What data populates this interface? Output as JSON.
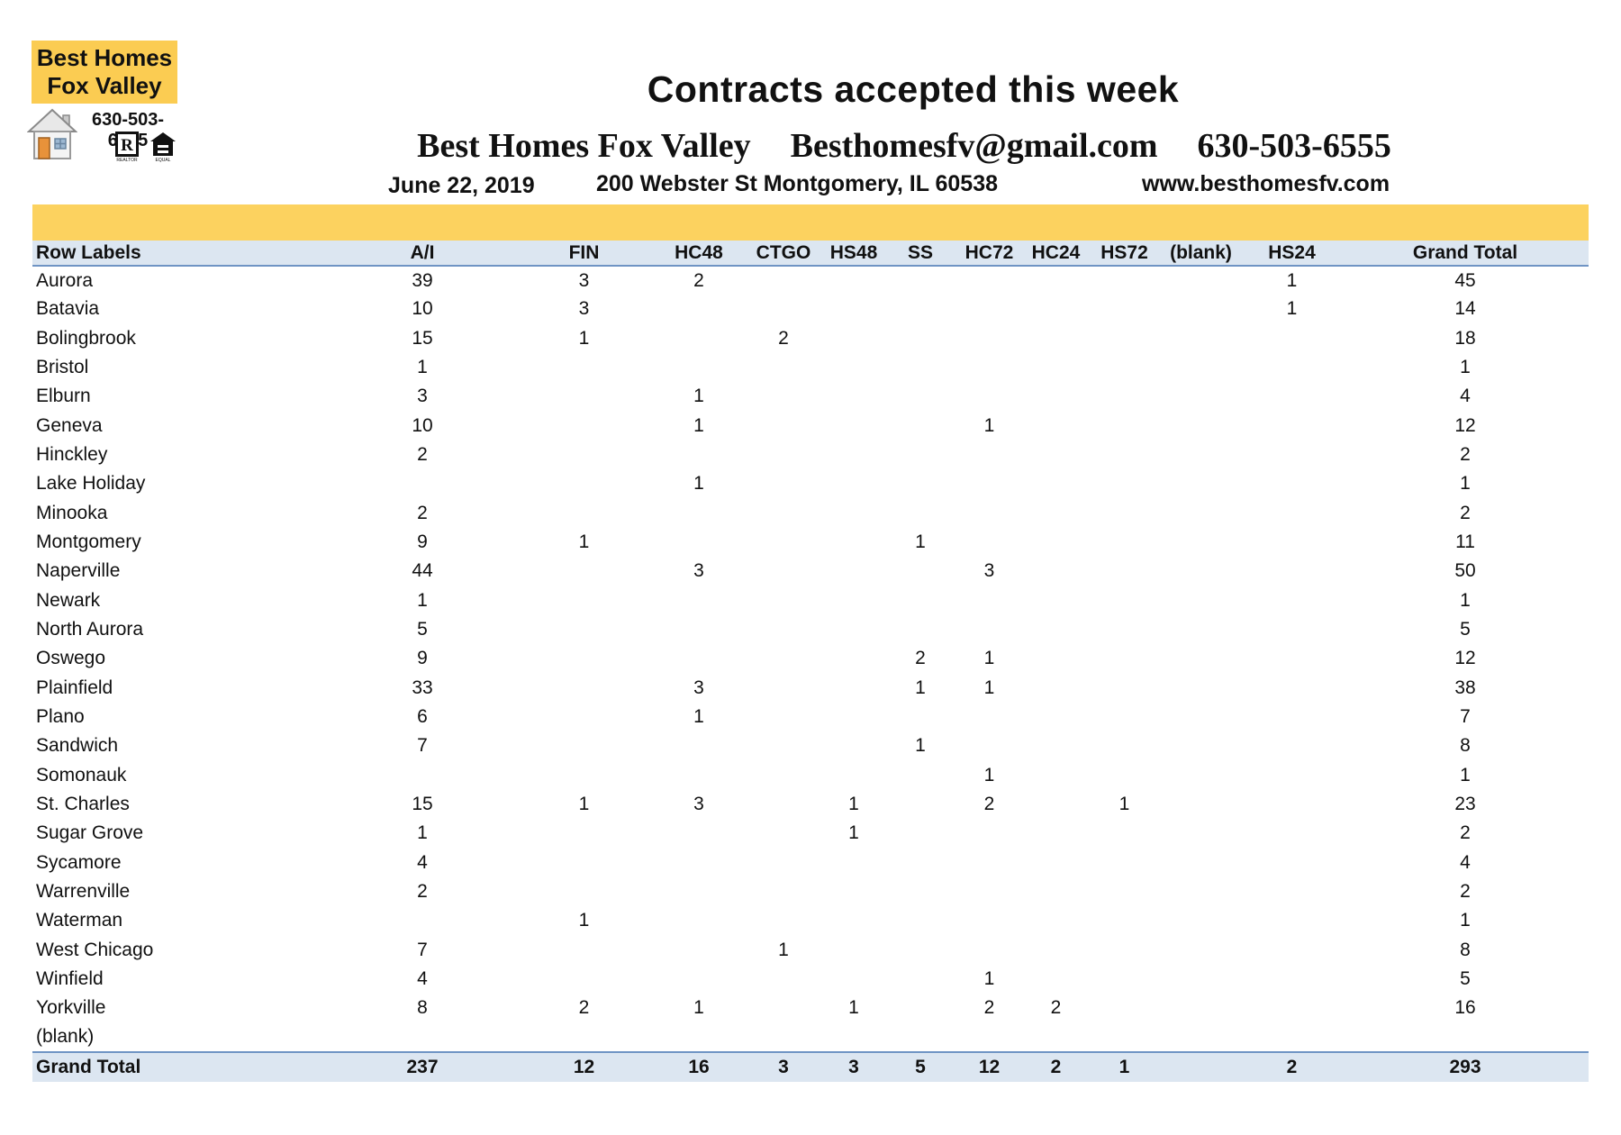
{
  "colors": {
    "logo_yellow": "#FBCC52",
    "band_yellow": "#FCD25F",
    "table_header_fill": "#DCE6F1",
    "table_border_blue": "#6F94C4",
    "text_black": "#111111"
  },
  "logo": {
    "name_line1": "Best Homes",
    "name_line2": "Fox Valley",
    "phone": "630-503-6555",
    "realtor_letter": "R"
  },
  "header": {
    "title": "Contracts accepted this week",
    "company": "Best Homes Fox Valley",
    "email": "Besthomesfv@gmail.com",
    "phone": "630-503-6555",
    "date": "June 22, 2019",
    "address": "200 Webster St Montgomery, IL 60538",
    "website": "www.besthomesfv.com"
  },
  "table": {
    "columns": [
      "Row Labels",
      "A/I",
      "FIN",
      "HC48",
      "CTGO",
      "HS48",
      "SS",
      "HC72",
      "HC24",
      "HS72",
      "(blank)",
      "HS24",
      "Grand Total"
    ],
    "rows": [
      [
        "Aurora",
        "39",
        "3",
        "2",
        "",
        "",
        "",
        "",
        "",
        "",
        "",
        "1",
        "45"
      ],
      [
        "Batavia",
        "10",
        "3",
        "",
        "",
        "",
        "",
        "",
        "",
        "",
        "",
        "1",
        "14"
      ],
      [
        "Bolingbrook",
        "15",
        "1",
        "",
        "2",
        "",
        "",
        "",
        "",
        "",
        "",
        "",
        "18"
      ],
      [
        "Bristol",
        "1",
        "",
        "",
        "",
        "",
        "",
        "",
        "",
        "",
        "",
        "",
        "1"
      ],
      [
        "Elburn",
        "3",
        "",
        "1",
        "",
        "",
        "",
        "",
        "",
        "",
        "",
        "",
        "4"
      ],
      [
        "Geneva",
        "10",
        "",
        "1",
        "",
        "",
        "",
        "1",
        "",
        "",
        "",
        "",
        "12"
      ],
      [
        "Hinckley",
        "2",
        "",
        "",
        "",
        "",
        "",
        "",
        "",
        "",
        "",
        "",
        "2"
      ],
      [
        "Lake Holiday",
        "",
        "",
        "1",
        "",
        "",
        "",
        "",
        "",
        "",
        "",
        "",
        "1"
      ],
      [
        "Minooka",
        "2",
        "",
        "",
        "",
        "",
        "",
        "",
        "",
        "",
        "",
        "",
        "2"
      ],
      [
        "Montgomery",
        "9",
        "1",
        "",
        "",
        "",
        "1",
        "",
        "",
        "",
        "",
        "",
        "11"
      ],
      [
        "Naperville",
        "44",
        "",
        "3",
        "",
        "",
        "",
        "3",
        "",
        "",
        "",
        "",
        "50"
      ],
      [
        "Newark",
        "1",
        "",
        "",
        "",
        "",
        "",
        "",
        "",
        "",
        "",
        "",
        "1"
      ],
      [
        "North Aurora",
        "5",
        "",
        "",
        "",
        "",
        "",
        "",
        "",
        "",
        "",
        "",
        "5"
      ],
      [
        "Oswego",
        "9",
        "",
        "",
        "",
        "",
        "2",
        "1",
        "",
        "",
        "",
        "",
        "12"
      ],
      [
        "Plainfield",
        "33",
        "",
        "3",
        "",
        "",
        "1",
        "1",
        "",
        "",
        "",
        "",
        "38"
      ],
      [
        "Plano",
        "6",
        "",
        "1",
        "",
        "",
        "",
        "",
        "",
        "",
        "",
        "",
        "7"
      ],
      [
        "Sandwich",
        "7",
        "",
        "",
        "",
        "",
        "1",
        "",
        "",
        "",
        "",
        "",
        "8"
      ],
      [
        "Somonauk",
        "",
        "",
        "",
        "",
        "",
        "",
        "1",
        "",
        "",
        "",
        "",
        "1"
      ],
      [
        "St. Charles",
        "15",
        "1",
        "3",
        "",
        "1",
        "",
        "2",
        "",
        "1",
        "",
        "",
        "23"
      ],
      [
        "Sugar Grove",
        "1",
        "",
        "",
        "",
        "1",
        "",
        "",
        "",
        "",
        "",
        "",
        "2"
      ],
      [
        "Sycamore",
        "4",
        "",
        "",
        "",
        "",
        "",
        "",
        "",
        "",
        "",
        "",
        "4"
      ],
      [
        "Warrenville",
        "2",
        "",
        "",
        "",
        "",
        "",
        "",
        "",
        "",
        "",
        "",
        "2"
      ],
      [
        "Waterman",
        "",
        "1",
        "",
        "",
        "",
        "",
        "",
        "",
        "",
        "",
        "",
        "1"
      ],
      [
        "West Chicago",
        "7",
        "",
        "",
        "1",
        "",
        "",
        "",
        "",
        "",
        "",
        "",
        "8"
      ],
      [
        "Winfield",
        "4",
        "",
        "",
        "",
        "",
        "",
        "1",
        "",
        "",
        "",
        "",
        "5"
      ],
      [
        "Yorkville",
        "8",
        "2",
        "1",
        "",
        "1",
        "",
        "2",
        "2",
        "",
        "",
        "",
        "16"
      ],
      [
        "(blank)",
        "",
        "",
        "",
        "",
        "",
        "",
        "",
        "",
        "",
        "",
        "",
        ""
      ]
    ],
    "grand_total_row": [
      "Grand Total",
      "237",
      "12",
      "16",
      "3",
      "3",
      "5",
      "12",
      "2",
      "1",
      "",
      "2",
      "293"
    ]
  }
}
